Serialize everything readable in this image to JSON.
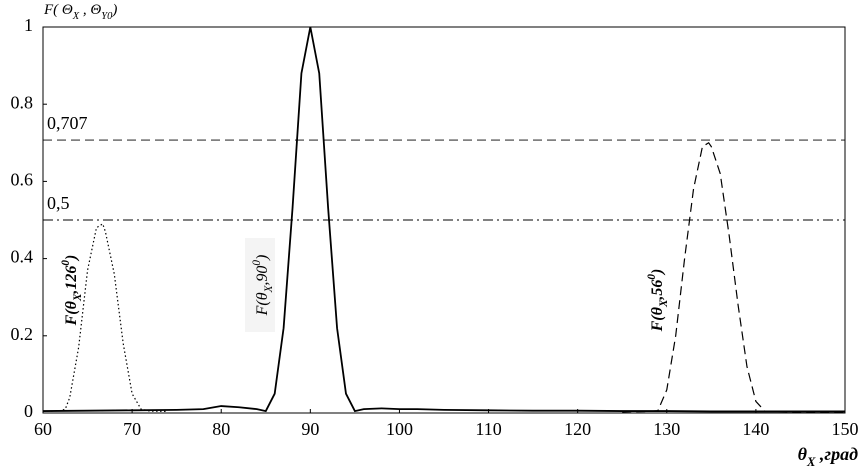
{
  "chart_data": {
    "type": "line",
    "ylabel": [
      {
        "text": "F( Θ"
      },
      {
        "text": "X",
        "pos": "sub"
      },
      {
        "text": " , Θ"
      },
      {
        "text": "Y0",
        "pos": "sub"
      },
      {
        "text": ")"
      }
    ],
    "xlabel": [
      {
        "text": "θ"
      },
      {
        "text": "X",
        "pos": "sub"
      },
      {
        "text": " ,град"
      }
    ],
    "xlim": [
      60,
      150
    ],
    "xticks": [
      60,
      70,
      80,
      90,
      100,
      110,
      120,
      130,
      140,
      150
    ],
    "ylim": [
      0,
      1
    ],
    "yticks": [
      0,
      0.2,
      0.4,
      0.6,
      0.8,
      1
    ],
    "reference_lines": [
      {
        "value": 0.707,
        "label": "0,707",
        "style": "dashed"
      },
      {
        "value": 0.5,
        "label": "0,5",
        "style": "dashdot"
      }
    ],
    "series": [
      {
        "color": "#000000",
        "style": "dotted",
        "label": [
          {
            "text": "F(θ"
          },
          {
            "text": "X",
            "pos": "sub"
          },
          {
            "text": ",126"
          },
          {
            "text": "0",
            "pos": "sup"
          },
          {
            "text": ")"
          }
        ],
        "x": [
          60,
          61,
          62,
          62.5,
          63,
          64,
          65,
          66,
          66.7,
          67,
          68,
          69,
          70,
          71,
          72,
          74
        ],
        "values": [
          0.005,
          0.005,
          0.006,
          0.01,
          0.04,
          0.17,
          0.37,
          0.48,
          0.49,
          0.47,
          0.36,
          0.18,
          0.05,
          0.01,
          0.005,
          0.004
        ]
      },
      {
        "color": "#000000",
        "style": "solid",
        "label": [
          {
            "text": "F(θ"
          },
          {
            "text": "X",
            "pos": "sub"
          },
          {
            "text": ",90"
          },
          {
            "text": "0",
            "pos": "sup"
          },
          {
            "text": ")"
          }
        ],
        "x": [
          60,
          65,
          70,
          75,
          78,
          80,
          82,
          84,
          85,
          86,
          87,
          88,
          89,
          90,
          91,
          92,
          93,
          94,
          95,
          96,
          98,
          100,
          102,
          105,
          110,
          115,
          120,
          125,
          130,
          135,
          140,
          145,
          150
        ],
        "values": [
          0.005,
          0.006,
          0.007,
          0.008,
          0.01,
          0.018,
          0.015,
          0.01,
          0.005,
          0.05,
          0.22,
          0.53,
          0.88,
          1,
          0.88,
          0.53,
          0.22,
          0.05,
          0.005,
          0.01,
          0.012,
          0.01,
          0.01,
          0.008,
          0.007,
          0.006,
          0.006,
          0.005,
          0.005,
          0.004,
          0.004,
          0.004,
          0.004
        ]
      },
      {
        "color": "#000000",
        "style": "dashed",
        "label": [
          {
            "text": "F(θ"
          },
          {
            "text": "X",
            "pos": "sub"
          },
          {
            "text": ",56"
          },
          {
            "text": "0",
            "pos": "sup"
          },
          {
            "text": ")"
          }
        ],
        "x": [
          125,
          128,
          129,
          130,
          131,
          132,
          133,
          134,
          134.7,
          135,
          136,
          137,
          138,
          139,
          140,
          141,
          144,
          150
        ],
        "values": [
          0.003,
          0.004,
          0.006,
          0.06,
          0.2,
          0.4,
          0.58,
          0.69,
          0.7,
          0.69,
          0.62,
          0.46,
          0.28,
          0.12,
          0.03,
          0.005,
          0.003,
          0.003
        ]
      }
    ]
  }
}
